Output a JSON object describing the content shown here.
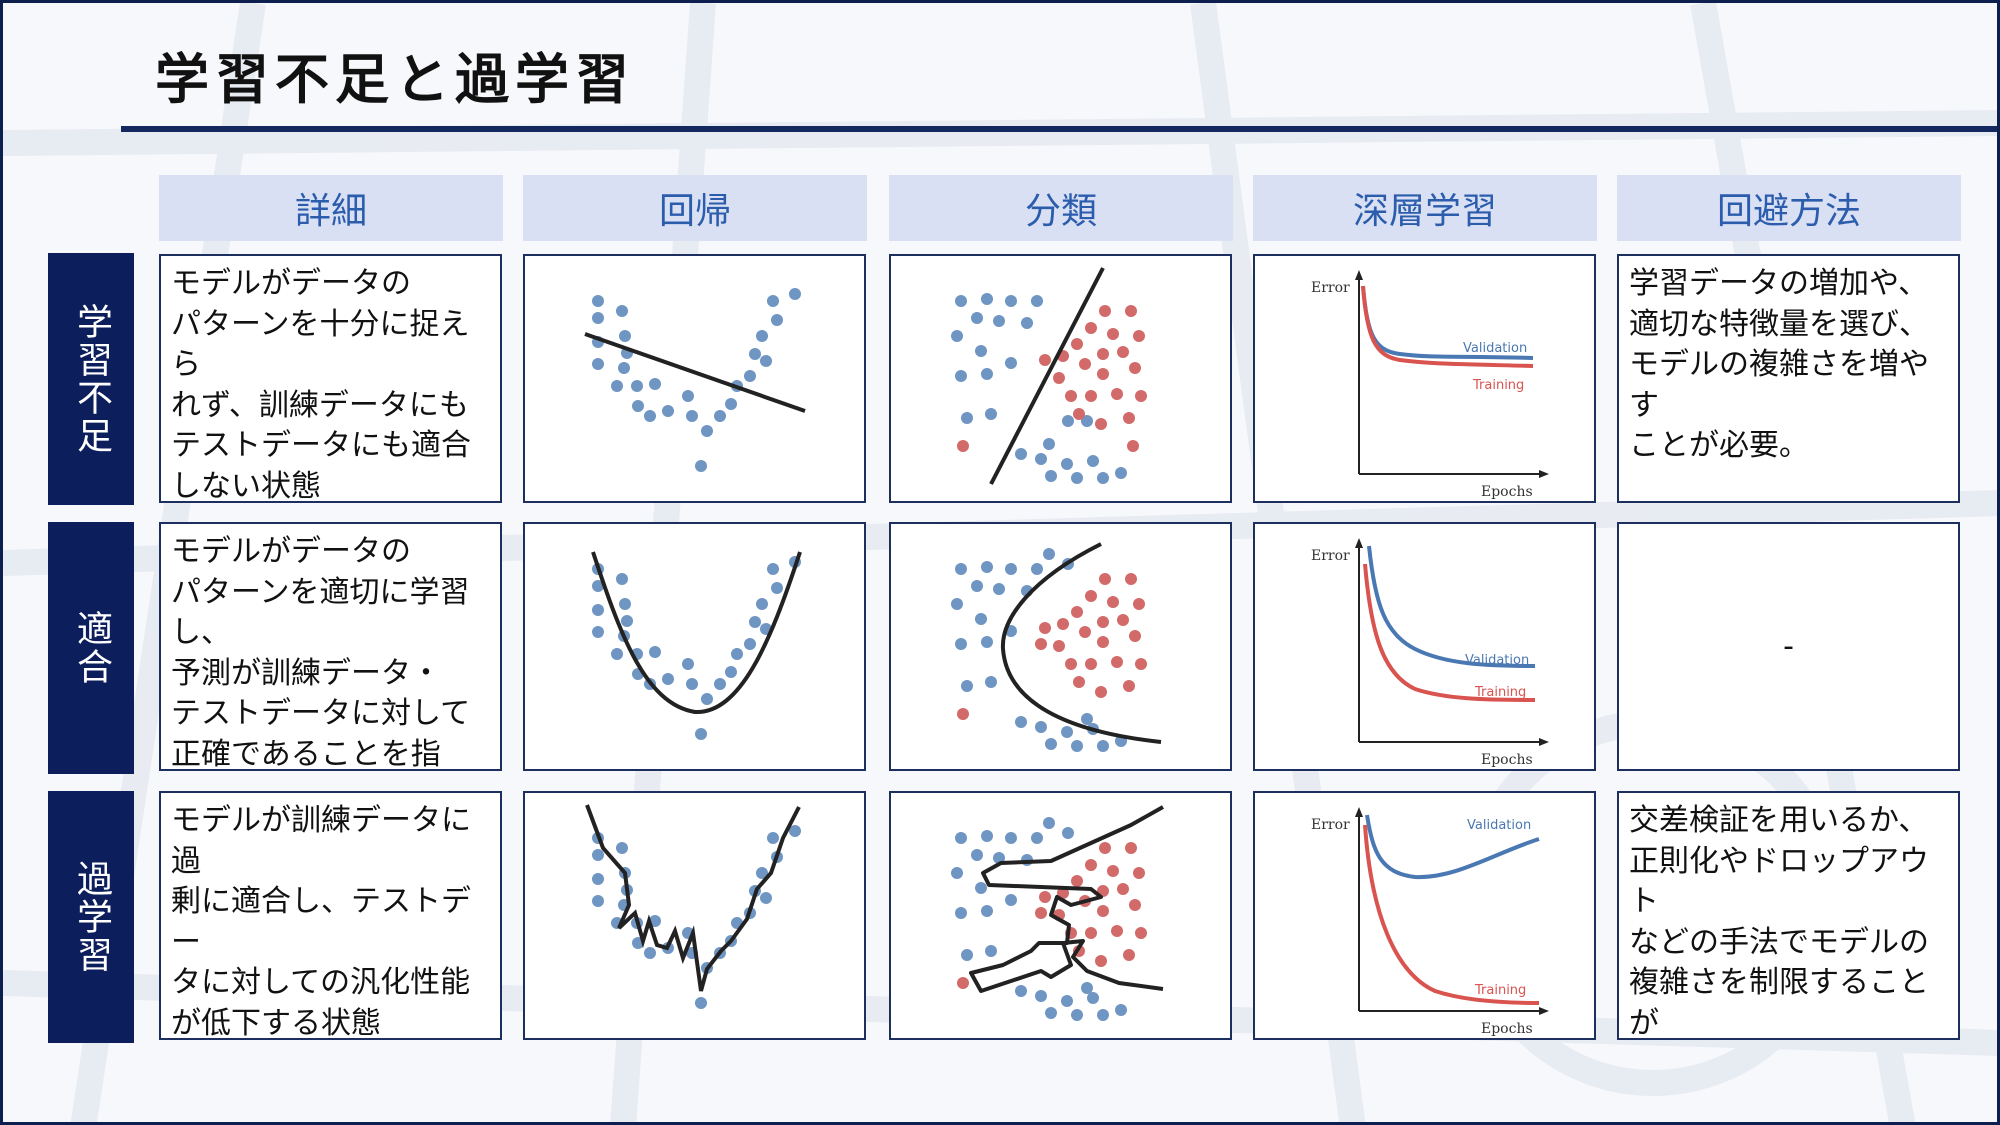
{
  "title": "学習不足と過学習",
  "columns": [
    "詳細",
    "回帰",
    "分類",
    "深層学習",
    "回避方法"
  ],
  "rows": [
    {
      "label": "学習不足",
      "detail": "モデルがデータの\nパターンを十分に捉えら\nれず、訓練データにも\nテストデータにも適合\nしない状態",
      "avoid": "学習データの増加や、\n適切な特徴量を選び、\nモデルの複雑さを増やす\nことが必要。"
    },
    {
      "label": "適合",
      "detail": "モデルがデータの\nパターンを適切に学習し、\n予測が訓練データ・\nテストデータに対して\n正確であることを指す。",
      "avoid": "-"
    },
    {
      "label": "過学習",
      "detail": "モデルが訓練データに過\n剰に適合し、テストデー\nタに対しての汎化性能\nが低下する状態",
      "avoid": "交差検証を用いるか、\n正則化やドロップアウト\nなどの手法でモデルの\n複雑さを制限することが\n重要"
    }
  ],
  "dl_labels": {
    "error": "Error",
    "epochs": "Epochs",
    "validation": "Validation",
    "training": "Training"
  },
  "colors": {
    "navy": "#0c1f5c",
    "header_bg": "#d9e0f4",
    "header_text": "#2b5dac",
    "blue_point": "#6f95c2",
    "red_point": "#d36a6a",
    "validation": "#4a78b3",
    "training": "#d9534f"
  }
}
